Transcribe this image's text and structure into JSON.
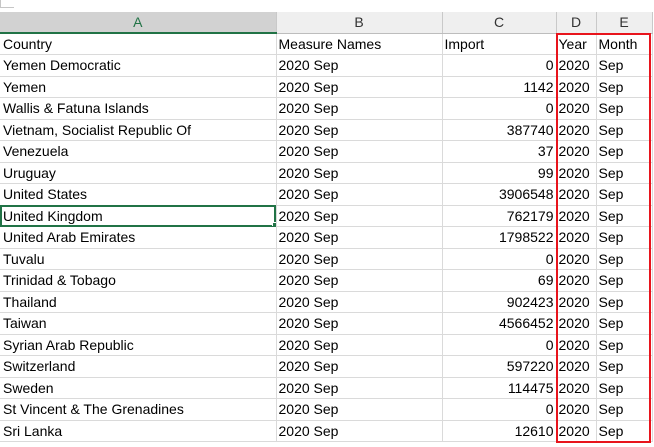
{
  "columns": [
    {
      "letter": "A",
      "active": true
    },
    {
      "letter": "B",
      "active": false
    },
    {
      "letter": "C",
      "active": false
    },
    {
      "letter": "D",
      "active": false
    },
    {
      "letter": "E",
      "active": false
    }
  ],
  "header_row": {
    "country": "Country",
    "measure": "Measure Names",
    "import": "Import",
    "year": "Year",
    "month": "Month"
  },
  "rows": [
    {
      "country": "Yemen Democratic",
      "measure": "2020 Sep",
      "import": "0",
      "year": "2020",
      "month": "Sep"
    },
    {
      "country": "Yemen",
      "measure": "2020 Sep",
      "import": "1142",
      "year": "2020",
      "month": "Sep"
    },
    {
      "country": "Wallis & Fatuna Islands",
      "measure": "2020 Sep",
      "import": "0",
      "year": "2020",
      "month": "Sep"
    },
    {
      "country": "Vietnam, Socialist Republic Of",
      "measure": "2020 Sep",
      "import": "387740",
      "year": "2020",
      "month": "Sep"
    },
    {
      "country": "Venezuela",
      "measure": "2020 Sep",
      "import": "37",
      "year": "2020",
      "month": "Sep"
    },
    {
      "country": "Uruguay",
      "measure": "2020 Sep",
      "import": "99",
      "year": "2020",
      "month": "Sep"
    },
    {
      "country": "United States",
      "measure": "2020 Sep",
      "import": "3906548",
      "year": "2020",
      "month": "Sep"
    },
    {
      "country": "United Kingdom",
      "measure": "2020 Sep",
      "import": "762179",
      "year": "2020",
      "month": "Sep",
      "selected": true
    },
    {
      "country": "United Arab Emirates",
      "measure": "2020 Sep",
      "import": "1798522",
      "year": "2020",
      "month": "Sep"
    },
    {
      "country": "Tuvalu",
      "measure": "2020 Sep",
      "import": "0",
      "year": "2020",
      "month": "Sep"
    },
    {
      "country": "Trinidad & Tobago",
      "measure": "2020 Sep",
      "import": "69",
      "year": "2020",
      "month": "Sep"
    },
    {
      "country": "Thailand",
      "measure": "2020 Sep",
      "import": "902423",
      "year": "2020",
      "month": "Sep"
    },
    {
      "country": "Taiwan",
      "measure": "2020 Sep",
      "import": "4566452",
      "year": "2020",
      "month": "Sep"
    },
    {
      "country": "Syrian Arab Republic",
      "measure": "2020 Sep",
      "import": "0",
      "year": "2020",
      "month": "Sep"
    },
    {
      "country": "Switzerland",
      "measure": "2020 Sep",
      "import": "597220",
      "year": "2020",
      "month": "Sep"
    },
    {
      "country": "Sweden",
      "measure": "2020 Sep",
      "import": "114475",
      "year": "2020",
      "month": "Sep"
    },
    {
      "country": "St Vincent & The Grenadines",
      "measure": "2020 Sep",
      "import": "0",
      "year": "2020",
      "month": "Sep"
    },
    {
      "country": "Sri Lanka",
      "measure": "2020 Sep",
      "import": "12610",
      "year": "2020",
      "month": "Sep"
    }
  ],
  "colors": {
    "highlight_border": "#e8141c",
    "selection_green": "#217346",
    "header_bg": "#efefef",
    "gridline": "#dadada"
  }
}
